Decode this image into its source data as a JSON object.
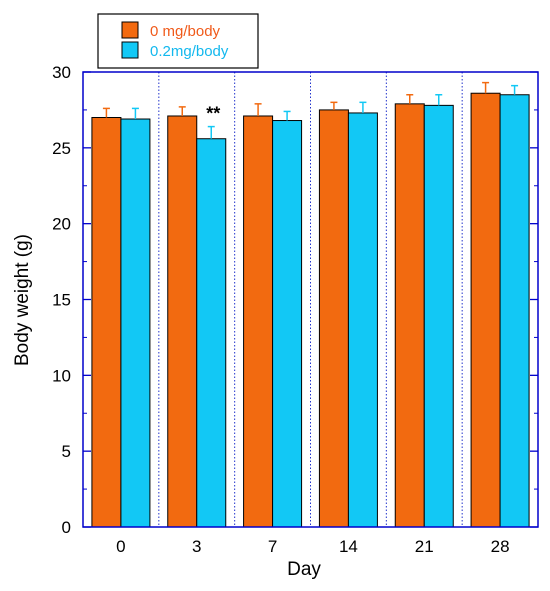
{
  "chart_data": {
    "type": "bar",
    "title": "",
    "xlabel": "Day",
    "ylabel": "Body weight (g)",
    "categories": [
      "0",
      "3",
      "7",
      "14",
      "21",
      "28"
    ],
    "ylim": [
      0,
      30
    ],
    "yticks": [
      "0",
      "5",
      "10",
      "15",
      "20",
      "25",
      "30"
    ],
    "grid": "vertical dotted separators between categories",
    "legend_position": "top-left outside",
    "series": [
      {
        "name": "0 mg/body",
        "color": "#f26a10",
        "text_color": "#f05a1a",
        "values": [
          27.0,
          27.1,
          27.1,
          27.5,
          27.9,
          28.6
        ],
        "errors": [
          0.6,
          0.6,
          0.8,
          0.5,
          0.6,
          0.7
        ]
      },
      {
        "name": "0.2mg/body",
        "color": "#12c8f5",
        "text_color": "#12b8ee",
        "values": [
          26.9,
          25.6,
          26.8,
          27.3,
          27.8,
          28.5
        ],
        "errors": [
          0.7,
          0.8,
          0.6,
          0.7,
          0.7,
          0.6
        ]
      }
    ],
    "annotations": [
      {
        "category_index": 1,
        "series_index": 1,
        "text": "**"
      }
    ],
    "colors": {
      "frame": "#0000cc",
      "separator": "#2233cc",
      "axis_text": "#000000"
    }
  }
}
